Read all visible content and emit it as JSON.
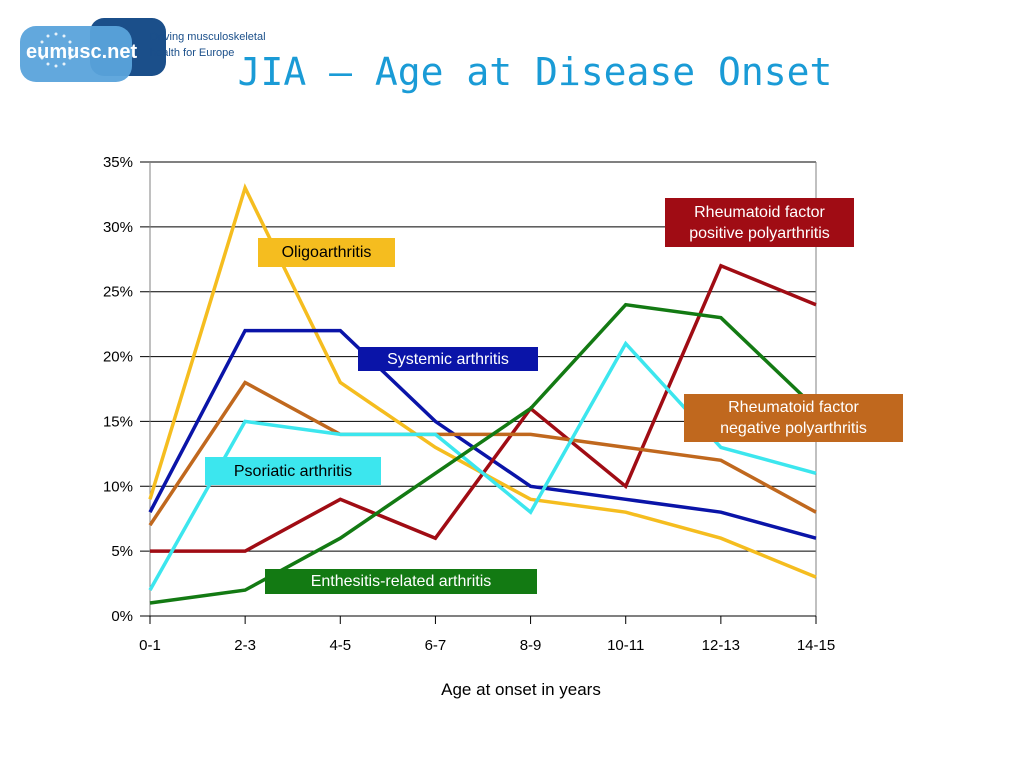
{
  "logo": {
    "wordmark": "eumusc.net",
    "tagline_line1": "Driving musculoskeletal",
    "tagline_line2": "health for Europe",
    "colors": {
      "dark": "#1b4f8a",
      "light": "#5aa3db"
    }
  },
  "title": "JIA – Age at Disease Onset",
  "chart_data": {
    "type": "line",
    "title": "JIA – Age at Disease Onset",
    "xlabel": "Age at onset in years",
    "ylabel": "",
    "categories": [
      "0-1",
      "2-3",
      "4-5",
      "6-7",
      "8-9",
      "10-11",
      "12-13",
      "14-15"
    ],
    "y_ticks": [
      "0%",
      "5%",
      "10%",
      "15%",
      "20%",
      "25%",
      "30%",
      "35%"
    ],
    "ylim": [
      0,
      35
    ],
    "grid": true,
    "series": [
      {
        "name": "Oligoarthritis",
        "color": "#f5bd1f",
        "text_color": "#000000",
        "values": [
          9,
          33,
          18,
          13,
          9,
          8,
          6,
          3
        ]
      },
      {
        "name": "Systemic arthritis",
        "color": "#0a14a8",
        "text_color": "#ffffff",
        "values": [
          8,
          22,
          22,
          15,
          10,
          9,
          8,
          6
        ]
      },
      {
        "name": "Rheumatoid factor positive polyarthritis",
        "color": "#a00c14",
        "text_color": "#ffffff",
        "label_lines": [
          "Rheumatoid factor",
          "positive polyarthritis"
        ],
        "values": [
          5,
          5,
          9,
          6,
          16,
          10,
          27,
          24
        ]
      },
      {
        "name": "Rheumatoid factor negative polyarthritis",
        "color": "#c0681e",
        "text_color": "#ffffff",
        "label_lines": [
          "Rheumatoid factor",
          "negative polyarthritis"
        ],
        "values": [
          7,
          18,
          14,
          14,
          14,
          13,
          12,
          8
        ]
      },
      {
        "name": "Psoriatic arthritis",
        "color": "#3ce6ee",
        "text_color": "#000000",
        "values": [
          2,
          15,
          14,
          14,
          8,
          21,
          13,
          11
        ]
      },
      {
        "name": "Enthesitis-related arthritis",
        "color": "#137a13",
        "text_color": "#ffffff",
        "values": [
          1,
          2,
          6,
          11,
          16,
          24,
          23,
          16
        ]
      }
    ]
  }
}
